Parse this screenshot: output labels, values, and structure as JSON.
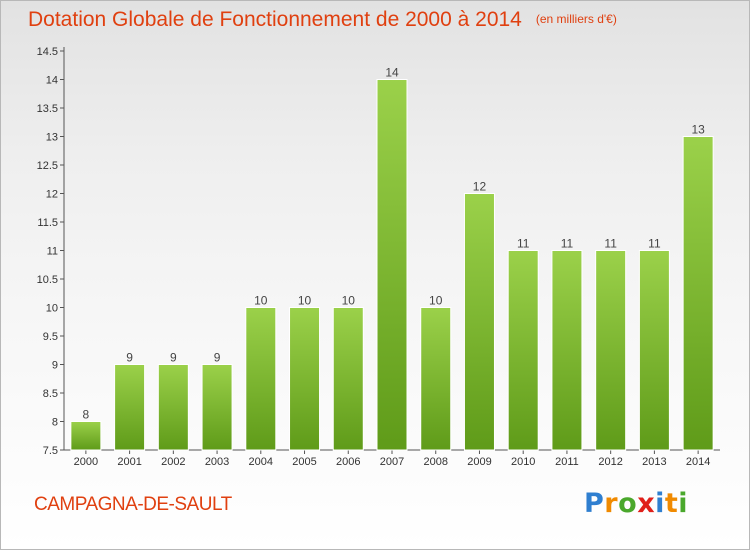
{
  "header": {
    "title": "Dotation Globale de Fonctionnement de 2000 à 2014",
    "unit": "(en milliers d'€)"
  },
  "footer": {
    "commune": "CAMPAGNA-DE-SAULT",
    "logo": "Proxiti"
  },
  "colors": {
    "title": "#e04010",
    "bar_top": "#9bd14a",
    "bar_bottom": "#5f9b19"
  },
  "chart_data": {
    "type": "bar",
    "title": "Dotation Globale de Fonctionnement de 2000 à 2014",
    "subtitle": "(en milliers d'€)",
    "categories": [
      "2000",
      "2001",
      "2002",
      "2003",
      "2004",
      "2005",
      "2006",
      "2007",
      "2008",
      "2009",
      "2010",
      "2011",
      "2012",
      "2013",
      "2014"
    ],
    "values": [
      8,
      9,
      9,
      9,
      10,
      10,
      10,
      14,
      10,
      12,
      11,
      11,
      11,
      11,
      13
    ],
    "data_labels": [
      "8",
      "9",
      "9",
      "9",
      "10",
      "10",
      "10",
      "14",
      "10",
      "12",
      "11",
      "11",
      "11",
      "11",
      "13"
    ],
    "ylim": [
      7.5,
      14.5
    ],
    "yticks": [
      7.5,
      8,
      8.5,
      9,
      9.5,
      10,
      10.5,
      11,
      11.5,
      12,
      12.5,
      13,
      13.5,
      14,
      14.5
    ],
    "ytick_labels": [
      "7.5",
      "8",
      "8.5",
      "9",
      "9.5",
      "10",
      "10.5",
      "11",
      "11.5",
      "12",
      "12.5",
      "13",
      "13.5",
      "14",
      "14.5"
    ],
    "grid": false
  }
}
